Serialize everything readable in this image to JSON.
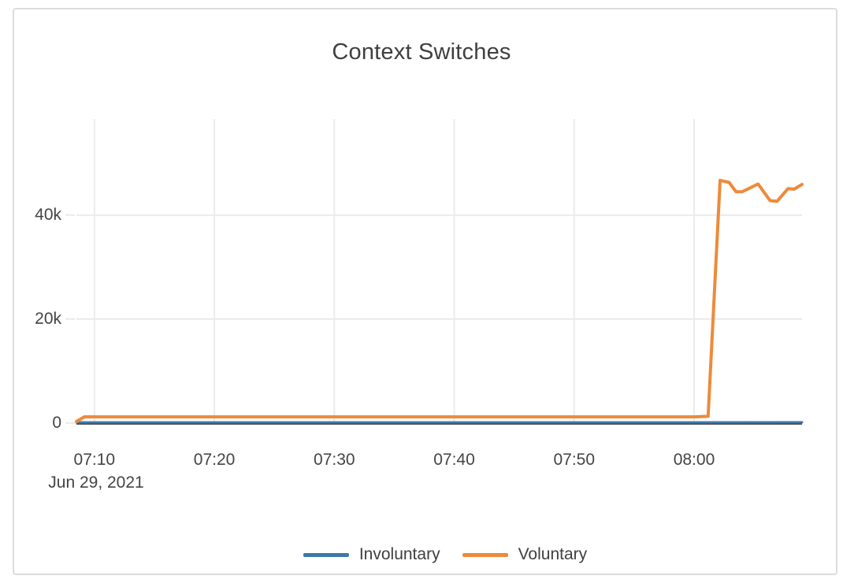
{
  "card": {
    "background_color": "#ffffff",
    "border_color": "#dcdcdc"
  },
  "chart_data": {
    "type": "line",
    "title": "Context Switches",
    "x_axis": {
      "tick_labels": [
        "07:10",
        "07:20",
        "07:30",
        "07:40",
        "07:50",
        "08:00"
      ],
      "date_label": "Jun 29, 2021",
      "range": [
        "07:08:30",
        "08:09:00"
      ]
    },
    "y_axis": {
      "tick_labels": [
        "0",
        "20k",
        "40k"
      ],
      "tick_values": [
        0,
        20000,
        40000
      ],
      "range": [
        0,
        58500
      ]
    },
    "grid": true,
    "grid_color": "#ebebeb",
    "zeroline_color": "#444444",
    "text_color": "#444444",
    "legend_position": "bottom-center",
    "series": [
      {
        "name": "Involuntary",
        "color": "#3d78ab",
        "points": [
          [
            "07:08:30",
            130
          ],
          [
            "07:20:00",
            140
          ],
          [
            "07:40:00",
            130
          ],
          [
            "08:00:00",
            140
          ],
          [
            "08:09:00",
            150
          ]
        ]
      },
      {
        "name": "Voluntary",
        "color": "#ee8a3a",
        "points": [
          [
            "07:08:30",
            300
          ],
          [
            "07:09:10",
            1200
          ],
          [
            "07:30:00",
            1200
          ],
          [
            "08:00:00",
            1200
          ],
          [
            "08:01:10",
            1300
          ],
          [
            "08:02:10",
            46700
          ],
          [
            "08:02:55",
            46300
          ],
          [
            "08:03:30",
            44500
          ],
          [
            "08:04:00",
            44500
          ],
          [
            "08:05:20",
            46000
          ],
          [
            "08:06:20",
            42800
          ],
          [
            "08:06:55",
            42650
          ],
          [
            "08:07:50",
            45100
          ],
          [
            "08:08:20",
            45000
          ],
          [
            "08:09:00",
            45900
          ]
        ]
      }
    ]
  }
}
